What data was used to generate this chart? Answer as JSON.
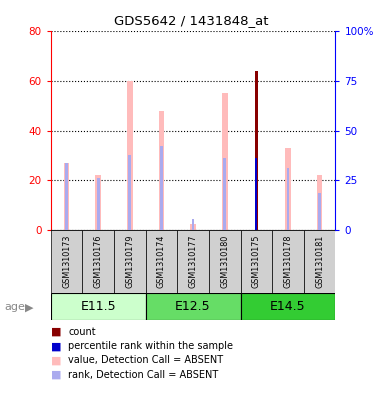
{
  "title": "GDS5642 / 1431848_at",
  "samples": [
    "GSM1310173",
    "GSM1310176",
    "GSM1310179",
    "GSM1310174",
    "GSM1310177",
    "GSM1310180",
    "GSM1310175",
    "GSM1310178",
    "GSM1310181"
  ],
  "age_groups": [
    {
      "label": "E11.5",
      "start": 0,
      "end": 3,
      "color": "#ccffcc"
    },
    {
      "label": "E12.5",
      "start": 3,
      "end": 6,
      "color": "#66dd66"
    },
    {
      "label": "E14.5",
      "start": 6,
      "end": 9,
      "color": "#33cc33"
    }
  ],
  "value_absent": [
    27,
    22,
    60,
    48,
    2.5,
    55,
    0,
    33,
    22
  ],
  "rank_absent": [
    27,
    21,
    30,
    34,
    4.5,
    29,
    0,
    25,
    15
  ],
  "count_value": [
    0,
    0,
    0,
    0,
    0,
    0,
    64,
    0,
    0
  ],
  "percentile_rank": [
    0,
    0,
    0,
    0,
    0,
    0,
    36,
    0,
    0
  ],
  "ylim_left": [
    0,
    80
  ],
  "ylim_right": [
    0,
    100
  ],
  "left_ticks": [
    0,
    20,
    40,
    60,
    80
  ],
  "right_ticks": [
    0,
    25,
    50,
    75,
    100
  ],
  "color_value_absent": "#ffbbbb",
  "color_rank_absent": "#aaaaee",
  "color_count": "#880000",
  "color_percentile": "#0000cc",
  "legend_labels": [
    "count",
    "percentile rank within the sample",
    "value, Detection Call = ABSENT",
    "rank, Detection Call = ABSENT"
  ],
  "legend_colors": [
    "#880000",
    "#0000cc",
    "#ffbbbb",
    "#aaaaee"
  ]
}
